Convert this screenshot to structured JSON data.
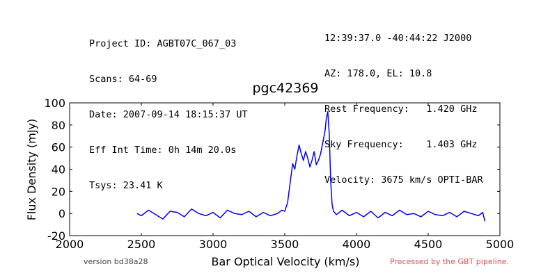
{
  "header": {
    "left": [
      "Project ID: AGBT07C_067_03",
      "Scans: 64-69",
      "Date: 2007-09-14 18:15:37 UT",
      "Eff Int Time: 0h 14m 20.0s",
      "Tsys: 23.41 K"
    ],
    "right": [
      "12:39:37.0 -40:44:22 J2000",
      "AZ: 178.0, EL: 10.8",
      "Rest Frequency:   1.420 GHz",
      "Sky Frequency:    1.403 GHz",
      "Velocity: 3675 km/s OPTI-BAR"
    ]
  },
  "footer": {
    "version": "version bd38a28",
    "pipeline": "Processed by the GBT pipeline."
  },
  "chart_data": {
    "type": "line",
    "title": "pgc42369",
    "xlabel": "Bar Optical Velocity (km/s)",
    "ylabel": "Flux Density (mJy)",
    "xlim": [
      2000,
      5000
    ],
    "ylim": [
      -20,
      100
    ],
    "xticks": [
      2000,
      2500,
      3000,
      3500,
      4000,
      4500,
      5000
    ],
    "yticks": [
      -20,
      0,
      20,
      40,
      60,
      80,
      100
    ],
    "grid": false,
    "series": [
      {
        "color": "#0000ff",
        "x": [
          2470,
          2500,
          2550,
          2600,
          2650,
          2700,
          2750,
          2800,
          2850,
          2900,
          2950,
          3000,
          3050,
          3100,
          3150,
          3200,
          3250,
          3300,
          3350,
          3400,
          3450,
          3480,
          3500,
          3520,
          3540,
          3555,
          3570,
          3585,
          3600,
          3615,
          3630,
          3645,
          3660,
          3675,
          3690,
          3705,
          3720,
          3735,
          3750,
          3765,
          3780,
          3790,
          3800,
          3810,
          3820,
          3830,
          3840,
          3860,
          3900,
          3950,
          4000,
          4050,
          4100,
          4150,
          4200,
          4250,
          4300,
          4350,
          4400,
          4450,
          4500,
          4550,
          4600,
          4650,
          4700,
          4750,
          4800,
          4850,
          4880,
          4895
        ],
        "y": [
          0,
          -2,
          3,
          -1,
          -5,
          2,
          1,
          -3,
          4,
          0,
          -2,
          1,
          -4,
          3,
          0,
          -1,
          2,
          -3,
          1,
          -2,
          0,
          3,
          2,
          10,
          30,
          45,
          40,
          52,
          62,
          54,
          48,
          56,
          50,
          42,
          48,
          56,
          44,
          48,
          54,
          64,
          74,
          86,
          92,
          72,
          30,
          8,
          2,
          -1,
          3,
          -2,
          1,
          -3,
          2,
          -4,
          1,
          -2,
          3,
          -1,
          0,
          -3,
          2,
          -1,
          -2,
          1,
          -3,
          2,
          0,
          -2,
          1,
          -7
        ]
      }
    ]
  }
}
